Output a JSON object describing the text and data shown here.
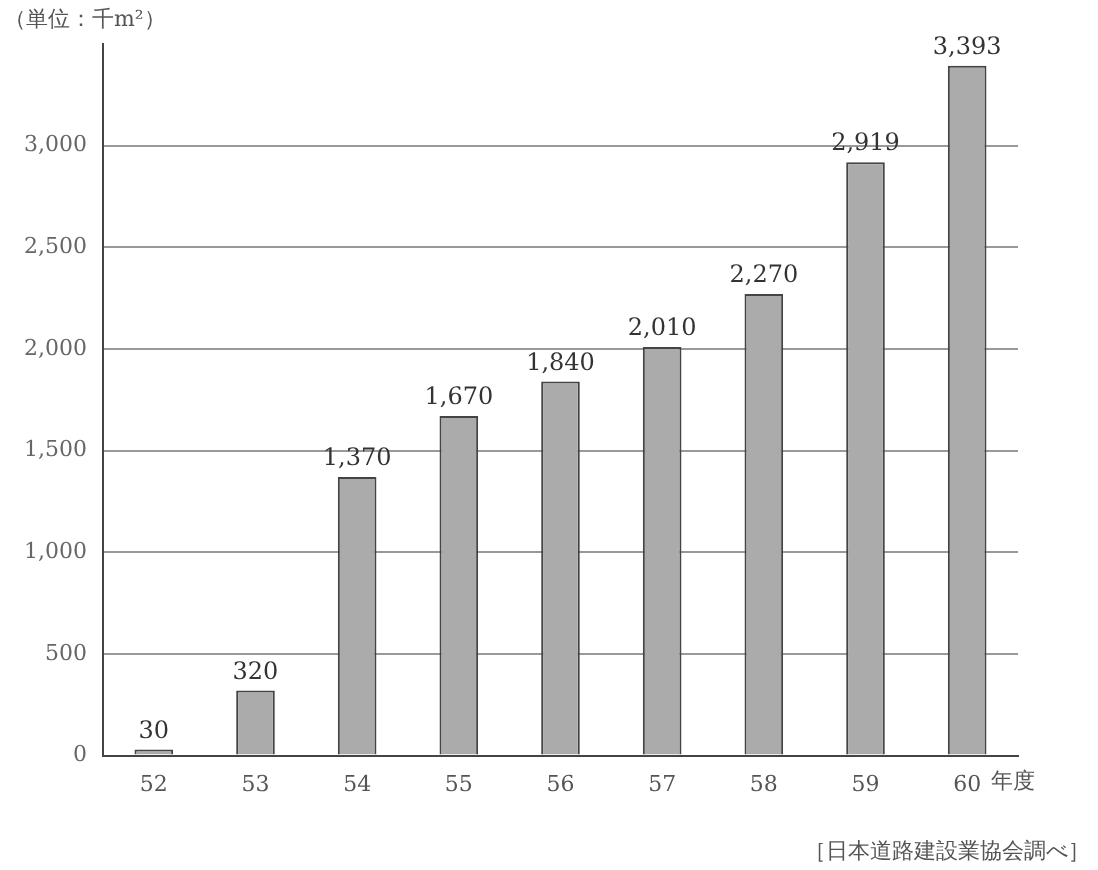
{
  "chart_data": {
    "type": "bar",
    "ylabel": "（単位：千m²）",
    "xlabel": "年度",
    "categories": [
      "52",
      "53",
      "54",
      "55",
      "56",
      "57",
      "58",
      "59",
      "60"
    ],
    "values": [
      30,
      320,
      1370,
      1670,
      1840,
      2010,
      2270,
      2919,
      3393
    ],
    "value_labels": [
      "30",
      "320",
      "1,370",
      "1,670",
      "1,840",
      "2,010",
      "2,270",
      "2,919",
      "3,393"
    ],
    "color": "#ababab",
    "ylim": [
      0,
      3500
    ],
    "yticks": [
      0,
      500,
      {
        "value": 1000,
        "label": "1,000"
      },
      {
        "value": 1500,
        "label": "1,500"
      },
      {
        "value": 2000,
        "label": "2,000"
      },
      {
        "value": 2500,
        "label": "2,500"
      },
      {
        "value": 3000,
        "label": "3,000"
      }
    ],
    "grid": "y",
    "annotations": [
      "［日本道路建設業協会調べ］"
    ]
  }
}
